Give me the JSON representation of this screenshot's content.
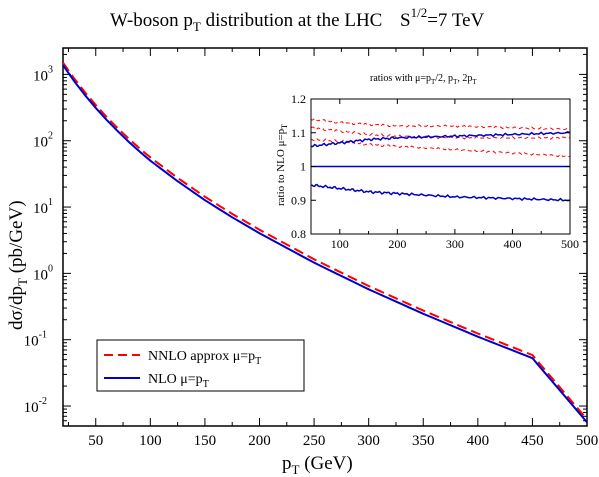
{
  "chart_data": [
    {
      "type": "line",
      "title": {
        "text": "W-boson p",
        "sub": "T",
        "rest": " distribution at the LHC"
      },
      "energy_label": {
        "prefix": "S",
        "sup": "1/2",
        "rest": "=7 TeV"
      },
      "xlabel": {
        "text": "p",
        "sub": "T",
        "rest": " (GeV)"
      },
      "ylabel": {
        "text": "dσ/dp",
        "sub": "T",
        "rest": " (pb/GeV)"
      },
      "xlim": [
        20,
        500
      ],
      "ylim": [
        0.005,
        2500
      ],
      "yscale": "log",
      "xticks": [
        "50",
        "100",
        "150",
        "200",
        "250",
        "300",
        "350",
        "400",
        "450",
        "500"
      ],
      "yticks": [
        {
          "value": 0.01,
          "base": "10",
          "exp": "-2"
        },
        {
          "value": 0.1,
          "base": "10",
          "exp": "-1"
        },
        {
          "value": 1,
          "base": "10",
          "exp": "0"
        },
        {
          "value": 10,
          "base": "10",
          "exp": "1"
        },
        {
          "value": 100,
          "base": "10",
          "exp": "2"
        },
        {
          "value": 1000,
          "base": "10",
          "exp": "3"
        }
      ],
      "legend_position": "bottom-left",
      "series": [
        {
          "name": "NNLO approx   μ=p_T",
          "legend": {
            "text": "NNLO approx   μ=p",
            "sub": "T"
          },
          "color": "#ff0000",
          "dash": "dashed",
          "x": [
            20,
            30,
            40,
            50,
            60,
            70,
            80,
            90,
            100,
            125,
            150,
            175,
            200,
            250,
            300,
            350,
            400,
            450,
            500
          ],
          "y": [
            1500,
            880,
            540,
            345,
            228,
            155,
            108,
            77,
            56,
            27.5,
            14.3,
            7.9,
            4.55,
            1.63,
            0.645,
            0.275,
            0.124,
            0.0587,
            0.0063
          ]
        },
        {
          "name": "NLO  μ=p_T",
          "legend": {
            "text": "NLO  μ=p",
            "sub": "T"
          },
          "color": "#0000cc",
          "dash": "solid",
          "x": [
            20,
            30,
            40,
            50,
            60,
            70,
            80,
            90,
            100,
            125,
            150,
            175,
            200,
            250,
            300,
            350,
            400,
            450,
            500
          ],
          "y": [
            1380,
            800,
            490,
            312,
            206,
            140,
            97,
            69,
            50,
            24.5,
            12.7,
            7.0,
            4.03,
            1.45,
            0.575,
            0.246,
            0.111,
            0.0527,
            0.0057
          ]
        }
      ]
    },
    {
      "type": "line",
      "title": {
        "text": "ratios with μ=p",
        "sub1": "T",
        "mid": "/2, p",
        "sub2": "T",
        "rest": ", 2p",
        "sub3": "T"
      },
      "ylabel": {
        "text": "ratio to NLO μ=p",
        "sub": "T"
      },
      "xlim": [
        50,
        500
      ],
      "ylim": [
        0.8,
        1.2
      ],
      "xticks": [
        "100",
        "200",
        "300",
        "400",
        "500"
      ],
      "yticks": [
        "0.8",
        "0.9",
        "1",
        "1.1",
        "1.2"
      ],
      "series": [
        {
          "color": "#ff0000",
          "dash": "dashed",
          "x": [
            50,
            100,
            150,
            200,
            300,
            400,
            500
          ],
          "y": [
            1.14,
            1.13,
            1.125,
            1.12,
            1.12,
            1.115,
            1.11
          ]
        },
        {
          "color": "#ff0000",
          "dash": "dashed",
          "x": [
            50,
            100,
            150,
            200,
            300,
            400,
            500
          ],
          "y": [
            1.115,
            1.105,
            1.095,
            1.09,
            1.085,
            1.085,
            1.085
          ]
        },
        {
          "color": "#ff0000",
          "dash": "dashed",
          "x": [
            50,
            100,
            150,
            200,
            300,
            400,
            500
          ],
          "y": [
            1.08,
            1.075,
            1.065,
            1.06,
            1.05,
            1.04,
            1.03
          ]
        },
        {
          "color": "#0000cc",
          "dash": "solid",
          "x": [
            50,
            100,
            150,
            200,
            300,
            400,
            500
          ],
          "y": [
            1.06,
            1.07,
            1.08,
            1.085,
            1.09,
            1.095,
            1.1
          ]
        },
        {
          "color": "#0000cc",
          "dash": "solid",
          "x": [
            50,
            100,
            150,
            200,
            300,
            400,
            500
          ],
          "y": [
            1.0,
            1.0,
            1.0,
            1.0,
            1.0,
            1.0,
            1.0
          ]
        },
        {
          "color": "#0000cc",
          "dash": "solid",
          "x": [
            50,
            100,
            150,
            200,
            300,
            400,
            500
          ],
          "y": [
            0.945,
            0.935,
            0.925,
            0.92,
            0.91,
            0.905,
            0.9
          ]
        }
      ]
    }
  ]
}
